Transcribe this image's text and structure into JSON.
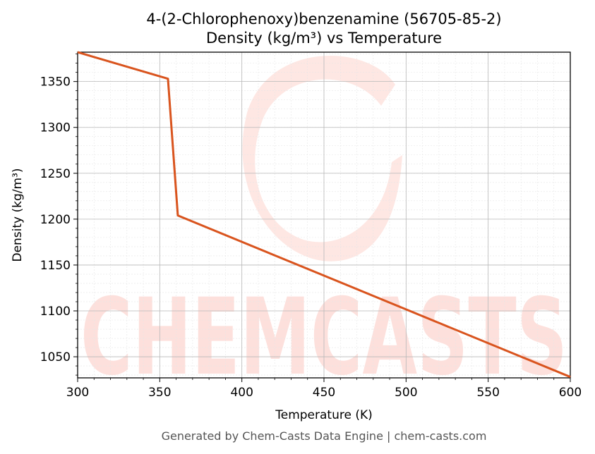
{
  "chart_data": {
    "type": "line",
    "title": "4-(2-Chlorophenoxy)benzenamine (56705-85-2)",
    "subtitle": "Density (kg/m³) vs Temperature",
    "xlabel": "Temperature (K)",
    "ylabel": "Density (kg/m³)",
    "xlim": [
      300,
      600
    ],
    "ylim": [
      1027,
      1382
    ],
    "xticks": [
      300,
      350,
      400,
      450,
      500,
      550,
      600
    ],
    "yticks": [
      1050,
      1100,
      1150,
      1200,
      1250,
      1300,
      1350
    ],
    "grid": true,
    "series": [
      {
        "color": "#d9541e",
        "x": [
          300,
          355,
          361,
          600
        ],
        "y": [
          1382,
          1353,
          1204,
          1028
        ]
      }
    ]
  },
  "watermark": "CHEMCASTS",
  "footer": "Generated by Chem-Casts Data Engine | chem-casts.com"
}
